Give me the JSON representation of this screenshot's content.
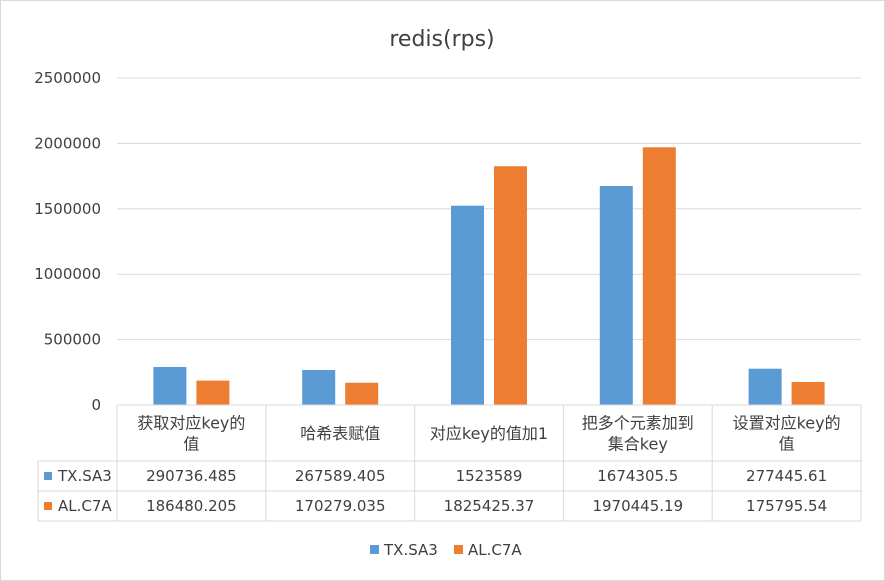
{
  "chart_data": {
    "type": "bar",
    "title": "redis(rps)",
    "categories": [
      [
        "获取对应key的",
        "值"
      ],
      [
        "哈希表赋值"
      ],
      [
        "对应key的值加1"
      ],
      [
        "把多个元素加到",
        "集合key"
      ],
      [
        "设置对应key的",
        "值"
      ]
    ],
    "series": [
      {
        "name": "TX.SA3",
        "color": "#5b9bd5",
        "values": [
          290736.485,
          267589.405,
          1523589,
          1674305.5,
          277445.61
        ],
        "labels": [
          "290736.485",
          "267589.405",
          "1523589",
          "1674305.5",
          "277445.61"
        ]
      },
      {
        "name": "AL.C7A",
        "color": "#ed7d31",
        "values": [
          186480.205,
          170279.035,
          1825425.37,
          1970445.19,
          175795.54
        ],
        "labels": [
          "186480.205",
          "170279.035",
          "1825425.37",
          "1970445.19",
          "175795.54"
        ]
      }
    ],
    "ylim": [
      0,
      2500000
    ],
    "yticks": [
      "0",
      "500000",
      "1000000",
      "1500000",
      "2000000",
      "2500000"
    ],
    "grid": true,
    "legend": "bottom",
    "data_table": true
  }
}
